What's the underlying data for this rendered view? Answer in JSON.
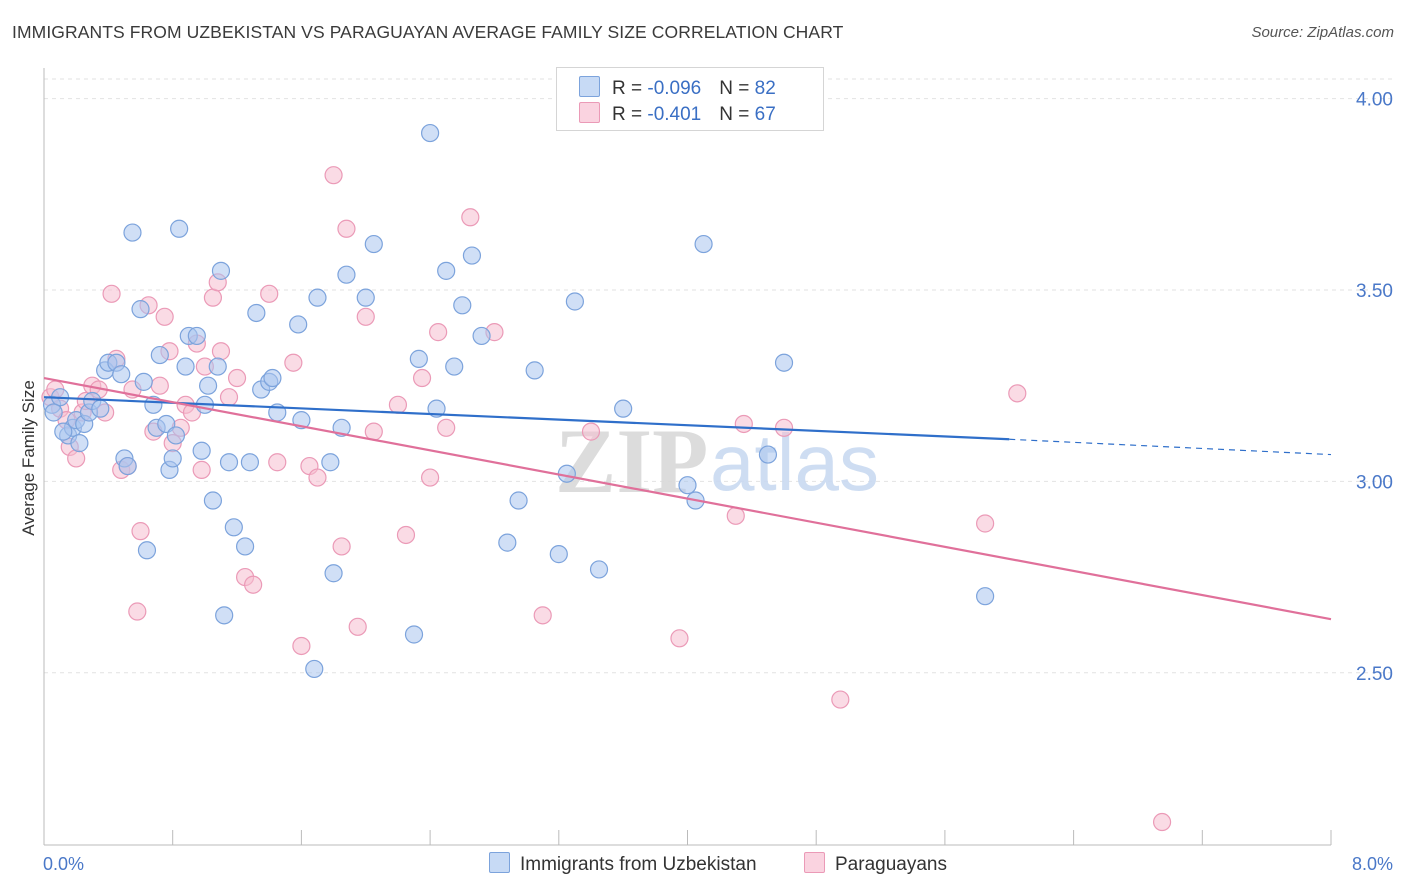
{
  "title": "IMMIGRANTS FROM UZBEKISTAN VS PARAGUAYAN AVERAGE FAMILY SIZE CORRELATION CHART",
  "source": "Source: ZipAtlas.com",
  "colors": {
    "blue_fill": "#a9c5ef",
    "blue_stroke": "#7ca3dc",
    "blue_line": "#2f6fca",
    "pink_fill": "#f6bdd0",
    "pink_stroke": "#eb9ab7",
    "pink_line": "#e0709a",
    "tick_text": "#4a78c8",
    "grid": "#e2e2e2"
  },
  "legend": {
    "rows": [
      {
        "r_label": "R = ",
        "r_value": "-0.096",
        "n_label": "N = ",
        "n_value": "82"
      },
      {
        "r_label": "R = ",
        "r_value": "-0.401",
        "n_label": "N = ",
        "n_value": "67"
      }
    ]
  },
  "bottom_legend": {
    "series_a": "Immigrants from Uzbekistan",
    "series_b": "Paraguayans"
  },
  "chart_data": {
    "type": "scatter",
    "title": "IMMIGRANTS FROM UZBEKISTAN VS PARAGUAYAN AVERAGE FAMILY SIZE CORRELATION CHART",
    "xlabel": "",
    "ylabel": "Average Family Size",
    "xlim": [
      0,
      8
    ],
    "ylim": [
      2.05,
      4.08
    ],
    "y_ticks": [
      2.5,
      3.0,
      3.5,
      4.0
    ],
    "y_tick_labels": [
      "2.50",
      "3.00",
      "3.50",
      "4.00"
    ],
    "x_tick_labels": [
      "0.0%",
      "8.0%"
    ],
    "watermark": {
      "zip": "ZIP",
      "atlas": "atlas"
    },
    "series": [
      {
        "name": "Immigrants from Uzbekistan",
        "R": -0.096,
        "N": 82,
        "trend": {
          "x0": 0.0,
          "y0": 3.22,
          "x1": 6.0,
          "y1": 3.11,
          "dash_x1": 8.0,
          "dash_y1": 3.07
        },
        "points": [
          [
            0.05,
            3.2
          ],
          [
            0.1,
            3.22
          ],
          [
            0.06,
            3.18
          ],
          [
            0.15,
            3.12
          ],
          [
            0.18,
            3.14
          ],
          [
            0.2,
            3.16
          ],
          [
            0.25,
            3.15
          ],
          [
            0.28,
            3.18
          ],
          [
            0.3,
            3.21
          ],
          [
            0.35,
            3.19
          ],
          [
            0.12,
            3.13
          ],
          [
            0.22,
            3.1
          ],
          [
            0.38,
            3.29
          ],
          [
            0.4,
            3.31
          ],
          [
            0.45,
            3.31
          ],
          [
            0.48,
            3.28
          ],
          [
            0.5,
            3.06
          ],
          [
            0.52,
            3.04
          ],
          [
            0.55,
            3.65
          ],
          [
            0.6,
            3.45
          ],
          [
            0.62,
            3.26
          ],
          [
            0.64,
            2.82
          ],
          [
            0.68,
            3.2
          ],
          [
            0.7,
            3.14
          ],
          [
            0.72,
            3.33
          ],
          [
            0.76,
            3.15
          ],
          [
            0.78,
            3.03
          ],
          [
            0.8,
            3.06
          ],
          [
            0.82,
            3.12
          ],
          [
            0.84,
            3.66
          ],
          [
            0.88,
            3.3
          ],
          [
            0.9,
            3.38
          ],
          [
            0.95,
            3.38
          ],
          [
            0.98,
            3.08
          ],
          [
            1.0,
            3.2
          ],
          [
            1.02,
            3.25
          ],
          [
            1.05,
            2.95
          ],
          [
            1.08,
            3.3
          ],
          [
            1.1,
            3.55
          ],
          [
            1.12,
            2.65
          ],
          [
            1.15,
            3.05
          ],
          [
            1.18,
            2.88
          ],
          [
            1.25,
            2.83
          ],
          [
            1.28,
            3.05
          ],
          [
            1.32,
            3.44
          ],
          [
            1.35,
            3.24
          ],
          [
            1.4,
            3.26
          ],
          [
            1.42,
            3.27
          ],
          [
            1.45,
            3.18
          ],
          [
            1.58,
            3.41
          ],
          [
            1.6,
            3.16
          ],
          [
            1.68,
            2.51
          ],
          [
            1.7,
            3.48
          ],
          [
            1.78,
            3.05
          ],
          [
            1.8,
            2.76
          ],
          [
            1.85,
            3.14
          ],
          [
            1.88,
            3.54
          ],
          [
            2.0,
            3.48
          ],
          [
            2.05,
            3.62
          ],
          [
            2.3,
            2.6
          ],
          [
            2.33,
            3.32
          ],
          [
            2.4,
            3.91
          ],
          [
            2.44,
            3.19
          ],
          [
            2.5,
            3.55
          ],
          [
            2.55,
            3.3
          ],
          [
            2.6,
            3.46
          ],
          [
            2.66,
            3.59
          ],
          [
            2.72,
            3.38
          ],
          [
            2.88,
            2.84
          ],
          [
            2.95,
            2.95
          ],
          [
            3.05,
            3.29
          ],
          [
            3.2,
            2.81
          ],
          [
            3.25,
            3.02
          ],
          [
            3.3,
            3.47
          ],
          [
            3.45,
            2.77
          ],
          [
            3.6,
            3.19
          ],
          [
            4.0,
            2.99
          ],
          [
            4.05,
            2.95
          ],
          [
            4.1,
            3.62
          ],
          [
            4.5,
            3.07
          ],
          [
            4.6,
            3.31
          ],
          [
            5.85,
            2.7
          ]
        ]
      },
      {
        "name": "Paraguayans",
        "R": -0.401,
        "N": 67,
        "trend": {
          "x0": 0.0,
          "y0": 3.27,
          "x1": 8.0,
          "y1": 2.64
        },
        "points": [
          [
            0.04,
            3.22
          ],
          [
            0.07,
            3.24
          ],
          [
            0.1,
            3.19
          ],
          [
            0.14,
            3.16
          ],
          [
            0.16,
            3.09
          ],
          [
            0.2,
            3.06
          ],
          [
            0.24,
            3.18
          ],
          [
            0.26,
            3.21
          ],
          [
            0.3,
            3.25
          ],
          [
            0.34,
            3.24
          ],
          [
            0.38,
            3.18
          ],
          [
            0.42,
            3.49
          ],
          [
            0.45,
            3.32
          ],
          [
            0.48,
            3.03
          ],
          [
            0.52,
            3.04
          ],
          [
            0.55,
            3.24
          ],
          [
            0.6,
            2.87
          ],
          [
            0.65,
            3.46
          ],
          [
            0.68,
            3.13
          ],
          [
            0.72,
            3.25
          ],
          [
            0.75,
            3.43
          ],
          [
            0.78,
            3.34
          ],
          [
            0.8,
            3.1
          ],
          [
            0.85,
            3.14
          ],
          [
            0.88,
            3.2
          ],
          [
            0.92,
            3.18
          ],
          [
            0.95,
            3.36
          ],
          [
            0.98,
            3.03
          ],
          [
            1.0,
            3.3
          ],
          [
            1.05,
            3.48
          ],
          [
            1.08,
            3.52
          ],
          [
            1.1,
            3.34
          ],
          [
            1.15,
            3.22
          ],
          [
            1.2,
            3.27
          ],
          [
            1.25,
            2.75
          ],
          [
            1.3,
            2.73
          ],
          [
            1.4,
            3.49
          ],
          [
            1.45,
            3.05
          ],
          [
            1.55,
            3.31
          ],
          [
            1.6,
            2.57
          ],
          [
            1.65,
            3.04
          ],
          [
            1.7,
            3.01
          ],
          [
            1.8,
            3.8
          ],
          [
            1.85,
            2.83
          ],
          [
            1.88,
            3.66
          ],
          [
            1.95,
            2.62
          ],
          [
            2.0,
            3.43
          ],
          [
            2.05,
            3.13
          ],
          [
            2.2,
            3.2
          ],
          [
            2.25,
            2.86
          ],
          [
            2.35,
            3.27
          ],
          [
            2.4,
            3.01
          ],
          [
            2.45,
            3.39
          ],
          [
            2.5,
            3.14
          ],
          [
            2.65,
            3.69
          ],
          [
            2.8,
            3.39
          ],
          [
            3.1,
            2.65
          ],
          [
            3.4,
            3.13
          ],
          [
            3.95,
            2.59
          ],
          [
            4.3,
            2.91
          ],
          [
            4.35,
            3.15
          ],
          [
            4.6,
            3.14
          ],
          [
            4.95,
            2.43
          ],
          [
            5.85,
            2.89
          ],
          [
            6.05,
            3.23
          ],
          [
            6.95,
            2.11
          ],
          [
            0.58,
            2.66
          ]
        ]
      }
    ]
  }
}
